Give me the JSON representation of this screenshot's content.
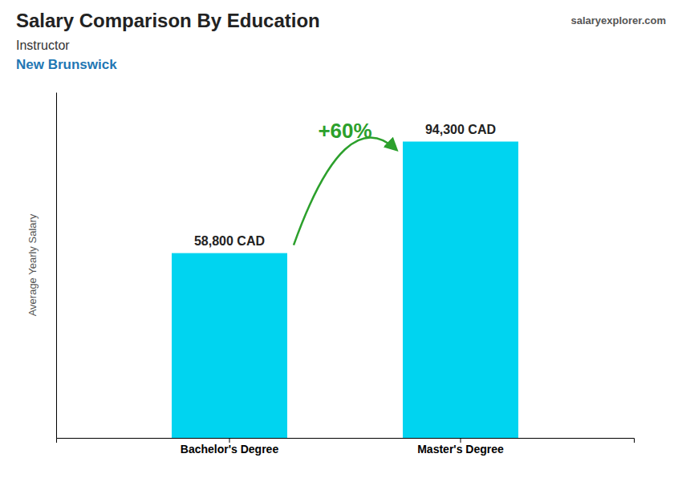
{
  "chart_data": {
    "type": "bar",
    "title": "Salary Comparison By Education",
    "subtitle": [
      "Instructor",
      "New Brunswick"
    ],
    "ylabel": "Average Yearly Salary",
    "categories": [
      "Bachelor's Degree",
      "Master's Degree"
    ],
    "values": [
      58800,
      94300
    ],
    "value_labels": [
      "58,800 CAD",
      "94,300 CAD"
    ],
    "data_labels": true,
    "annotations": [
      "+60%",
      "salaryexplorer.com"
    ],
    "color": "#00d4f0",
    "ylim": [
      0,
      110000
    ],
    "tick_labels": "x",
    "grid": false
  }
}
